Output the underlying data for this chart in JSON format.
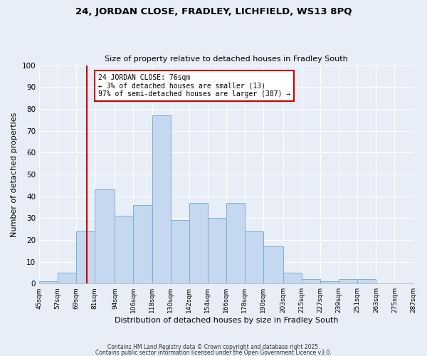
{
  "title1": "24, JORDAN CLOSE, FRADLEY, LICHFIELD, WS13 8PQ",
  "title2": "Size of property relative to detached houses in Fradley South",
  "xlabel": "Distribution of detached houses by size in Fradley South",
  "ylabel": "Number of detached properties",
  "bin_edges": [
    45,
    57,
    69,
    81,
    94,
    106,
    118,
    130,
    142,
    154,
    166,
    178,
    190,
    203,
    215,
    227,
    239,
    251,
    263,
    275,
    287
  ],
  "counts": [
    1,
    5,
    24,
    43,
    31,
    36,
    77,
    29,
    37,
    30,
    37,
    24,
    17,
    5,
    2,
    1,
    2,
    2,
    0,
    0
  ],
  "bar_color": "#c5d8f0",
  "bar_edge_color": "#7aafd4",
  "property_size": 76,
  "vline_color": "#cc0000",
  "annotation_text": "24 JORDAN CLOSE: 76sqm\n← 3% of detached houses are smaller (13)\n97% of semi-detached houses are larger (387) →",
  "annotation_box_color": "white",
  "annotation_box_edge_color": "#cc0000",
  "ylim": [
    0,
    100
  ],
  "yticks": [
    0,
    10,
    20,
    30,
    40,
    50,
    60,
    70,
    80,
    90,
    100
  ],
  "footnote1": "Contains HM Land Registry data © Crown copyright and database right 2025.",
  "footnote2": "Contains public sector information licensed under the Open Government Licence v3.0.",
  "background_color": "#e8eef8",
  "grid_color": "white"
}
